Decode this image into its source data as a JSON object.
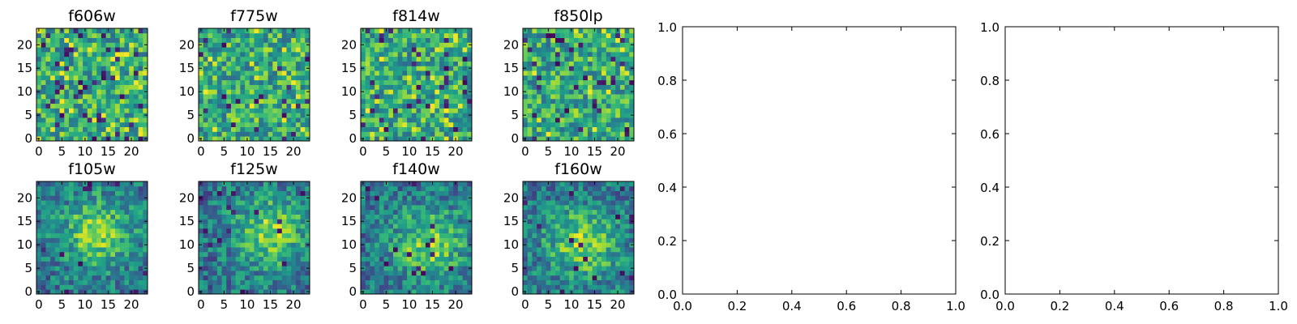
{
  "colors": {
    "background": "#ffffff",
    "axis": "#000000",
    "colormap": "viridis"
  },
  "chart_data": [
    {
      "type": "heatmap",
      "title": "f606w",
      "grid_size": 24,
      "x_ticks": [
        0,
        5,
        10,
        15,
        20
      ],
      "y_ticks": [
        0,
        5,
        10,
        15,
        20
      ],
      "texture": "noise"
    },
    {
      "type": "heatmap",
      "title": "f775w",
      "grid_size": 24,
      "x_ticks": [
        0,
        5,
        10,
        15,
        20
      ],
      "y_ticks": [
        0,
        5,
        10,
        15,
        20
      ],
      "texture": "noise"
    },
    {
      "type": "heatmap",
      "title": "f814w",
      "grid_size": 24,
      "x_ticks": [
        0,
        5,
        10,
        15,
        20
      ],
      "y_ticks": [
        0,
        5,
        10,
        15,
        20
      ],
      "texture": "noise"
    },
    {
      "type": "heatmap",
      "title": "f850lp",
      "grid_size": 24,
      "x_ticks": [
        0,
        5,
        10,
        15,
        20
      ],
      "y_ticks": [
        0,
        5,
        10,
        15,
        20
      ],
      "texture": "noise"
    },
    {
      "type": "heatmap",
      "title": "f105w",
      "grid_size": 24,
      "x_ticks": [
        0,
        5,
        10,
        15,
        20
      ],
      "y_ticks": [
        0,
        5,
        10,
        15,
        20
      ],
      "texture": "blob"
    },
    {
      "type": "heatmap",
      "title": "f125w",
      "grid_size": 24,
      "x_ticks": [
        0,
        5,
        10,
        15,
        20
      ],
      "y_ticks": [
        0,
        5,
        10,
        15,
        20
      ],
      "texture": "blob"
    },
    {
      "type": "heatmap",
      "title": "f140w",
      "grid_size": 24,
      "x_ticks": [
        0,
        5,
        10,
        15,
        20
      ],
      "y_ticks": [
        0,
        5,
        10,
        15,
        20
      ],
      "texture": "blob"
    },
    {
      "type": "heatmap",
      "title": "f160w",
      "grid_size": 24,
      "x_ticks": [
        0,
        5,
        10,
        15,
        20
      ],
      "y_ticks": [
        0,
        5,
        10,
        15,
        20
      ],
      "texture": "blob"
    },
    {
      "type": "scatter",
      "title": "",
      "x": [],
      "y": [],
      "xlim": [
        0,
        1
      ],
      "ylim": [
        0,
        1
      ],
      "x_ticks": [
        "0.0",
        "0.2",
        "0.4",
        "0.6",
        "0.8",
        "1.0"
      ],
      "y_ticks": [
        "0.0",
        "0.2",
        "0.4",
        "0.6",
        "0.8",
        "1.0"
      ]
    },
    {
      "type": "scatter",
      "title": "",
      "x": [],
      "y": [],
      "xlim": [
        0,
        1
      ],
      "ylim": [
        0,
        1
      ],
      "x_ticks": [
        "0.0",
        "0.2",
        "0.4",
        "0.6",
        "0.8",
        "1.0"
      ],
      "y_ticks": [
        "0.0",
        "0.2",
        "0.4",
        "0.6",
        "0.8",
        "1.0"
      ]
    }
  ]
}
